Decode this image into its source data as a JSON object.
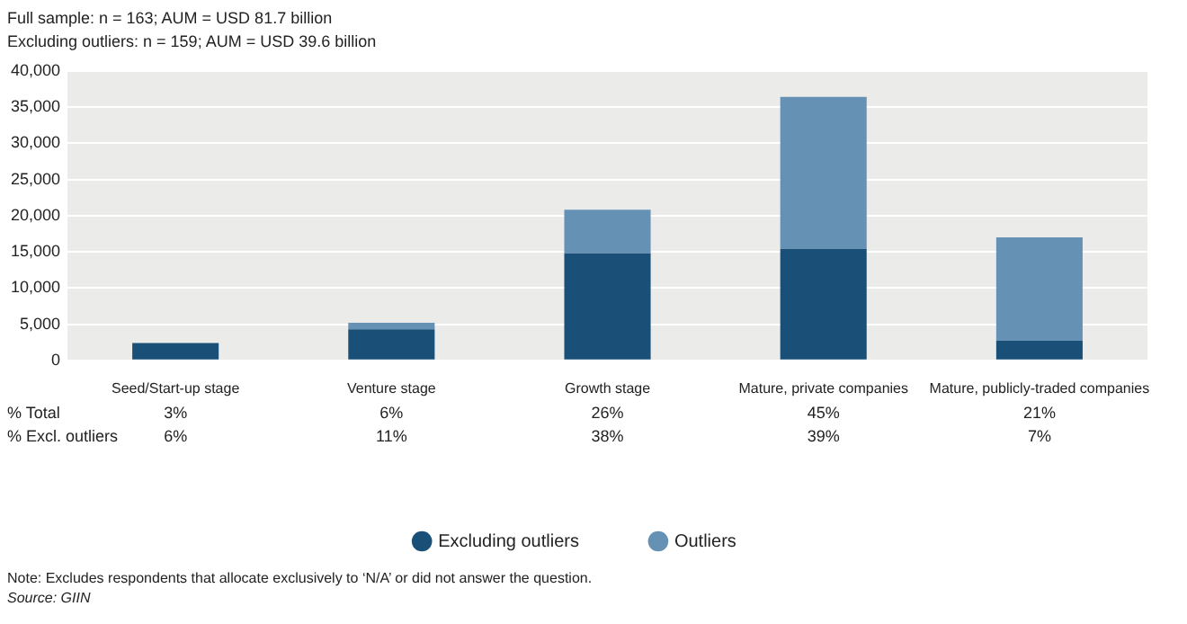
{
  "chart_data": {
    "type": "bar",
    "title": "Full sample: n = 163; AUM = USD 81.7 billion",
    "subtitle": "Excluding outliers: n = 159; AUM = USD 39.6 billion",
    "categories": [
      "Seed/Start-up stage",
      "Venture stage",
      "Growth stage",
      "Mature, private companies",
      "Mature, publicly-traded companies"
    ],
    "series": [
      {
        "name": "Excluding outliers",
        "color": "#1a4f78",
        "values": [
          2400,
          4300,
          14800,
          15400,
          2700
        ]
      },
      {
        "name": "Outliers",
        "color": "#6591b5",
        "values": [
          0,
          900,
          6000,
          21000,
          14300
        ]
      }
    ],
    "stacked": true,
    "ylim": [
      0,
      40000
    ],
    "yticks": [
      {
        "value": 0,
        "label": "0"
      },
      {
        "value": 5000,
        "label": "5,000"
      },
      {
        "value": 10000,
        "label": "10,000"
      },
      {
        "value": 15000,
        "label": "15,000"
      },
      {
        "value": 20000,
        "label": "20,000"
      },
      {
        "value": 25000,
        "label": "25,000"
      },
      {
        "value": 30000,
        "label": "30,000"
      },
      {
        "value": 35000,
        "label": "35,000"
      },
      {
        "value": 40000,
        "label": "40,000"
      }
    ],
    "grid": "y",
    "legend": "bottom",
    "annotations": [
      "% Total",
      "3%",
      "6%",
      "26%",
      "45%",
      "21%",
      "% Excl. outliers",
      "6%",
      "11%",
      "38%",
      "39%",
      "7%",
      "Note: Excludes respondents that allocate exclusively to ‘N/A’ or did not answer the question.",
      "Source: GIIN"
    ]
  }
}
